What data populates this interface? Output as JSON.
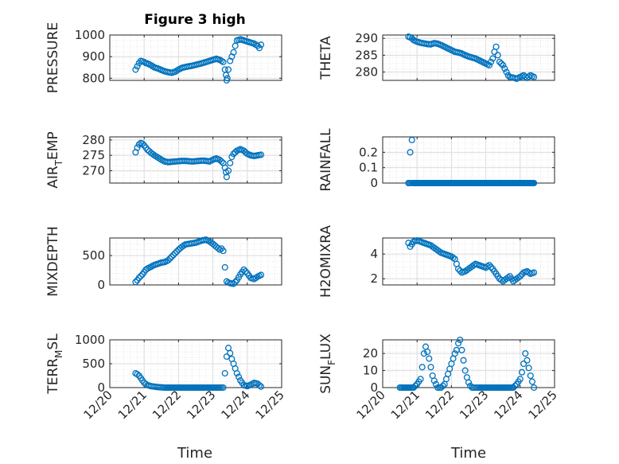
{
  "chart_data": {
    "type": "scatter",
    "title": "Figure 3 high",
    "xlabel": "Time",
    "x_ticks": [
      "12/20",
      "12/21",
      "12/22",
      "12/23",
      "12/24",
      "12/25"
    ],
    "xlim": [
      0,
      5
    ],
    "marker_color": "#0072BD",
    "panels": [
      {
        "id": "pressure",
        "ylabel": "PRESSURE",
        "ylabel_sub": "",
        "ylim": [
          790,
          1000
        ],
        "yticks": [
          800,
          900,
          1000
        ],
        "x": [
          0.75,
          0.8,
          0.85,
          0.9,
          0.95,
          1.0,
          1.05,
          1.1,
          1.2,
          1.3,
          1.4,
          1.5,
          1.6,
          1.7,
          1.8,
          1.9,
          2.0,
          2.1,
          2.2,
          2.3,
          2.4,
          2.5,
          2.6,
          2.7,
          2.8,
          2.9,
          3.0,
          3.1,
          3.2,
          3.3,
          3.35,
          3.38,
          3.4,
          3.42,
          3.45,
          3.5,
          3.55,
          3.6,
          3.65,
          3.7,
          3.8,
          3.9,
          4.0,
          4.1,
          4.2,
          4.3,
          4.35,
          4.4
        ],
        "y": [
          840,
          855,
          870,
          880,
          878,
          875,
          870,
          868,
          860,
          850,
          845,
          838,
          832,
          828,
          825,
          830,
          840,
          848,
          852,
          855,
          858,
          862,
          866,
          870,
          875,
          880,
          885,
          890,
          885,
          875,
          840,
          815,
          790,
          800,
          840,
          880,
          900,
          920,
          950,
          975,
          980,
          975,
          970,
          965,
          960,
          950,
          940,
          955
        ]
      },
      {
        "id": "theta",
        "ylabel": "THETA",
        "ylabel_sub": "",
        "ylim": [
          277.5,
          291
        ],
        "yticks": [
          280,
          285,
          290
        ],
        "x": [
          0.75,
          0.8,
          0.85,
          0.9,
          1.0,
          1.1,
          1.2,
          1.3,
          1.4,
          1.5,
          1.6,
          1.7,
          1.8,
          1.9,
          2.0,
          2.1,
          2.2,
          2.3,
          2.4,
          2.5,
          2.6,
          2.7,
          2.8,
          2.9,
          3.0,
          3.1,
          3.2,
          3.25,
          3.3,
          3.35,
          3.4,
          3.45,
          3.5,
          3.55,
          3.6,
          3.65,
          3.7,
          3.8,
          3.9,
          4.0,
          4.1,
          4.2,
          4.3,
          4.4
        ],
        "y": [
          290.5,
          290.3,
          290,
          289.5,
          289,
          288.7,
          288.5,
          288.3,
          288.2,
          288.6,
          288.4,
          288,
          287.5,
          287,
          286.5,
          286,
          285.8,
          285.5,
          285,
          284.6,
          284.3,
          284,
          283.5,
          283,
          282.5,
          282,
          284,
          286,
          287.5,
          285,
          283,
          282.5,
          282,
          281,
          280,
          279,
          278.5,
          278.3,
          278,
          278.5,
          279,
          278.2,
          279,
          278.5
        ]
      },
      {
        "id": "air_temp",
        "ylabel": "AIR",
        "ylabel_sub": "T",
        "ylabel_post": "EMP",
        "ylim": [
          266,
          281
        ],
        "yticks": [
          270,
          275,
          280
        ],
        "x": [
          0.75,
          0.8,
          0.85,
          0.9,
          0.95,
          1.0,
          1.05,
          1.1,
          1.2,
          1.3,
          1.4,
          1.5,
          1.6,
          1.7,
          1.8,
          1.9,
          2.0,
          2.1,
          2.2,
          2.3,
          2.4,
          2.5,
          2.6,
          2.7,
          2.8,
          2.9,
          3.0,
          3.1,
          3.2,
          3.3,
          3.35,
          3.38,
          3.4,
          3.45,
          3.5,
          3.55,
          3.6,
          3.7,
          3.8,
          3.9,
          4.0,
          4.1,
          4.2,
          4.3,
          4.4
        ],
        "y": [
          276,
          277.5,
          278.5,
          279,
          278.8,
          278.2,
          277.5,
          276.8,
          275.8,
          275,
          274.3,
          273.6,
          273,
          272.8,
          272.9,
          273,
          273.1,
          273.2,
          273.2,
          273.1,
          273,
          273.1,
          273.2,
          273.3,
          273.2,
          273,
          273.6,
          274,
          273.5,
          272.5,
          271,
          269.5,
          268,
          270,
          272.5,
          274.5,
          275.5,
          276.5,
          277,
          276.5,
          275.5,
          275,
          274.8,
          275,
          275.2
        ]
      },
      {
        "id": "rainfall",
        "ylabel": "RAINFALL",
        "ylabel_sub": "",
        "ylim": [
          0,
          0.3
        ],
        "yticks": [
          0,
          0.1,
          0.2
        ],
        "x": [
          0.75,
          0.8,
          0.85,
          0.9,
          1.0,
          1.2,
          1.4,
          1.6,
          1.8,
          2.0,
          2.2,
          2.4,
          2.6,
          2.8,
          3.0,
          3.2,
          3.4,
          3.6,
          3.8,
          4.0,
          4.2,
          4.4
        ],
        "y": [
          0,
          0.2,
          0.28,
          0,
          0,
          0,
          0,
          0,
          0,
          0,
          0,
          0,
          0,
          0,
          0,
          0,
          0,
          0,
          0,
          0,
          0,
          0
        ],
        "baseline": 0
      },
      {
        "id": "mixdepth",
        "ylabel": "MIXDEPTH",
        "ylabel_sub": "",
        "ylim": [
          0,
          800
        ],
        "yticks": [
          0,
          500
        ],
        "x": [
          0.75,
          0.8,
          0.85,
          0.9,
          0.95,
          1.0,
          1.05,
          1.1,
          1.2,
          1.3,
          1.4,
          1.5,
          1.6,
          1.7,
          1.8,
          1.9,
          2.0,
          2.1,
          2.2,
          2.3,
          2.4,
          2.5,
          2.6,
          2.7,
          2.8,
          2.9,
          3.0,
          3.1,
          3.2,
          3.25,
          3.3,
          3.35,
          3.4,
          3.45,
          3.5,
          3.6,
          3.7,
          3.8,
          3.9,
          4.0,
          4.1,
          4.2,
          4.3,
          4.4
        ],
        "y": [
          50,
          80,
          120,
          150,
          180,
          220,
          260,
          280,
          310,
          340,
          360,
          380,
          390,
          420,
          480,
          540,
          600,
          650,
          690,
          700,
          710,
          720,
          740,
          760,
          770,
          740,
          700,
          650,
          600,
          620,
          580,
          300,
          60,
          40,
          30,
          20,
          80,
          180,
          260,
          200,
          120,
          100,
          140,
          170
        ]
      },
      {
        "id": "h2omixra",
        "ylabel": "H2OMIXRA",
        "ylabel_sub": "",
        "ylim": [
          1.5,
          5.3
        ],
        "yticks": [
          2,
          4
        ],
        "x": [
          0.75,
          0.8,
          0.85,
          0.9,
          1.0,
          1.1,
          1.2,
          1.3,
          1.4,
          1.5,
          1.6,
          1.7,
          1.8,
          1.9,
          2.0,
          2.1,
          2.2,
          2.3,
          2.4,
          2.5,
          2.6,
          2.7,
          2.8,
          2.9,
          3.0,
          3.1,
          3.2,
          3.3,
          3.4,
          3.5,
          3.6,
          3.7,
          3.8,
          3.9,
          4.0,
          4.1,
          4.2,
          4.3,
          4.4
        ],
        "y": [
          4.9,
          4.6,
          4.8,
          5.0,
          5.1,
          5.0,
          4.9,
          4.8,
          4.7,
          4.5,
          4.3,
          4.1,
          4.0,
          3.9,
          3.8,
          3.6,
          2.8,
          2.5,
          2.6,
          2.8,
          3.0,
          3.2,
          3.1,
          3.0,
          2.9,
          3.1,
          2.8,
          2.4,
          2.0,
          1.8,
          2.0,
          2.2,
          1.8,
          2.0,
          2.2,
          2.5,
          2.6,
          2.4,
          2.5
        ]
      },
      {
        "id": "terr_msl",
        "ylabel": "TERR",
        "ylabel_sub": "M",
        "ylabel_post": "SL",
        "ylim": [
          0,
          1000
        ],
        "yticks": [
          0,
          500,
          1000
        ],
        "x": [
          0.75,
          0.8,
          0.85,
          0.9,
          0.95,
          1.0,
          1.1,
          1.2,
          1.3,
          1.4,
          1.5,
          1.6,
          1.8,
          2.0,
          2.2,
          2.4,
          2.6,
          2.8,
          3.0,
          3.2,
          3.3,
          3.35,
          3.4,
          3.45,
          3.5,
          3.55,
          3.6,
          3.65,
          3.7,
          3.8,
          3.9,
          4.0,
          4.1,
          4.2,
          4.3,
          4.4
        ],
        "y": [
          300,
          280,
          250,
          200,
          150,
          100,
          50,
          30,
          20,
          10,
          5,
          0,
          0,
          0,
          0,
          0,
          0,
          0,
          0,
          0,
          0,
          300,
          650,
          830,
          720,
          600,
          500,
          400,
          300,
          150,
          50,
          30,
          60,
          100,
          80,
          20
        ]
      },
      {
        "id": "sun_flux",
        "ylabel": "SUN",
        "ylabel_sub": "F",
        "ylabel_post": "LUX",
        "ylim": [
          0,
          28
        ],
        "yticks": [
          0,
          10,
          20
        ],
        "x": [
          0.5,
          0.7,
          0.9,
          1.0,
          1.1,
          1.15,
          1.2,
          1.25,
          1.3,
          1.35,
          1.4,
          1.45,
          1.5,
          1.55,
          1.6,
          1.7,
          1.8,
          1.9,
          2.0,
          2.1,
          2.15,
          2.2,
          2.25,
          2.3,
          2.35,
          2.4,
          2.45,
          2.5,
          2.55,
          2.6,
          2.7,
          2.8,
          3.0,
          3.2,
          3.4,
          3.6,
          3.8,
          3.9,
          4.0,
          4.05,
          4.1,
          4.15,
          4.2,
          4.3,
          4.4
        ],
        "y": [
          0,
          0,
          0,
          2,
          5,
          12,
          20,
          24,
          21,
          17,
          12,
          7,
          4,
          2,
          0,
          0,
          2,
          8,
          14,
          20,
          22,
          26,
          28,
          22,
          16,
          10,
          6,
          3,
          1,
          0,
          0,
          0,
          0,
          0,
          0,
          0,
          0,
          2,
          5,
          9,
          14,
          20,
          16,
          7,
          0
        ]
      }
    ]
  }
}
